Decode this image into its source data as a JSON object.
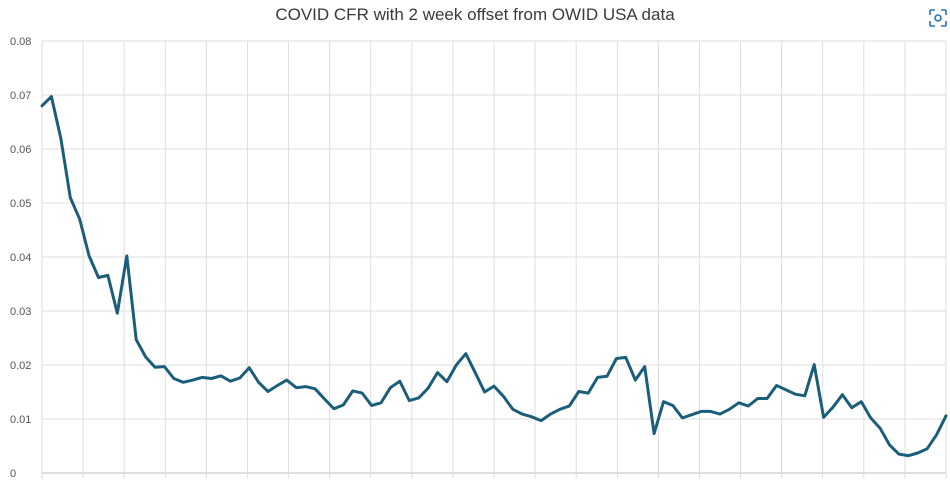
{
  "chart_data": {
    "type": "line",
    "title": "COVID CFR with 2 week offset from OWID USA data",
    "xlabel": "",
    "ylabel": "",
    "ylim": [
      0,
      0.08
    ],
    "yticks": [
      "0",
      "0.01",
      "0.02",
      "0.03",
      "0.04",
      "0.05",
      "0.06",
      "0.07",
      "0.08"
    ],
    "grid": true,
    "legend": "none",
    "line_color": "#1b5e7b",
    "series": [
      {
        "values": [
          0.068,
          0.0697,
          0.062,
          0.051,
          0.047,
          0.0402,
          0.0362,
          0.0366,
          0.0296,
          0.0402,
          0.0247,
          0.0215,
          0.0196,
          0.0197,
          0.0175,
          0.0168,
          0.0172,
          0.0177,
          0.0175,
          0.018,
          0.017,
          0.0176,
          0.0195,
          0.0168,
          0.0151,
          0.0162,
          0.0172,
          0.0158,
          0.016,
          0.0156,
          0.0137,
          0.0119,
          0.0126,
          0.0152,
          0.0148,
          0.0125,
          0.013,
          0.0158,
          0.017,
          0.0134,
          0.0139,
          0.0157,
          0.0186,
          0.0169,
          0.02,
          0.0221,
          0.0186,
          0.015,
          0.0161,
          0.0142,
          0.0118,
          0.0109,
          0.0104,
          0.0097,
          0.0109,
          0.0118,
          0.0124,
          0.0151,
          0.0148,
          0.0177,
          0.0179,
          0.0212,
          0.0214,
          0.0172,
          0.0197,
          0.0073,
          0.0132,
          0.0125,
          0.0102,
          0.0108,
          0.0114,
          0.0114,
          0.0109,
          0.0118,
          0.013,
          0.0124,
          0.0138,
          0.0138,
          0.0162,
          0.0154,
          0.0146,
          0.0143,
          0.0201,
          0.0103,
          0.0122,
          0.0145,
          0.0121,
          0.0132,
          0.0102,
          0.0083,
          0.0052,
          0.0035,
          0.0032,
          0.0037,
          0.0045,
          0.0071,
          0.0106
        ]
      }
    ],
    "x_gridline_count": 22
  },
  "ui": {
    "expand_icon": "expand-icon"
  }
}
